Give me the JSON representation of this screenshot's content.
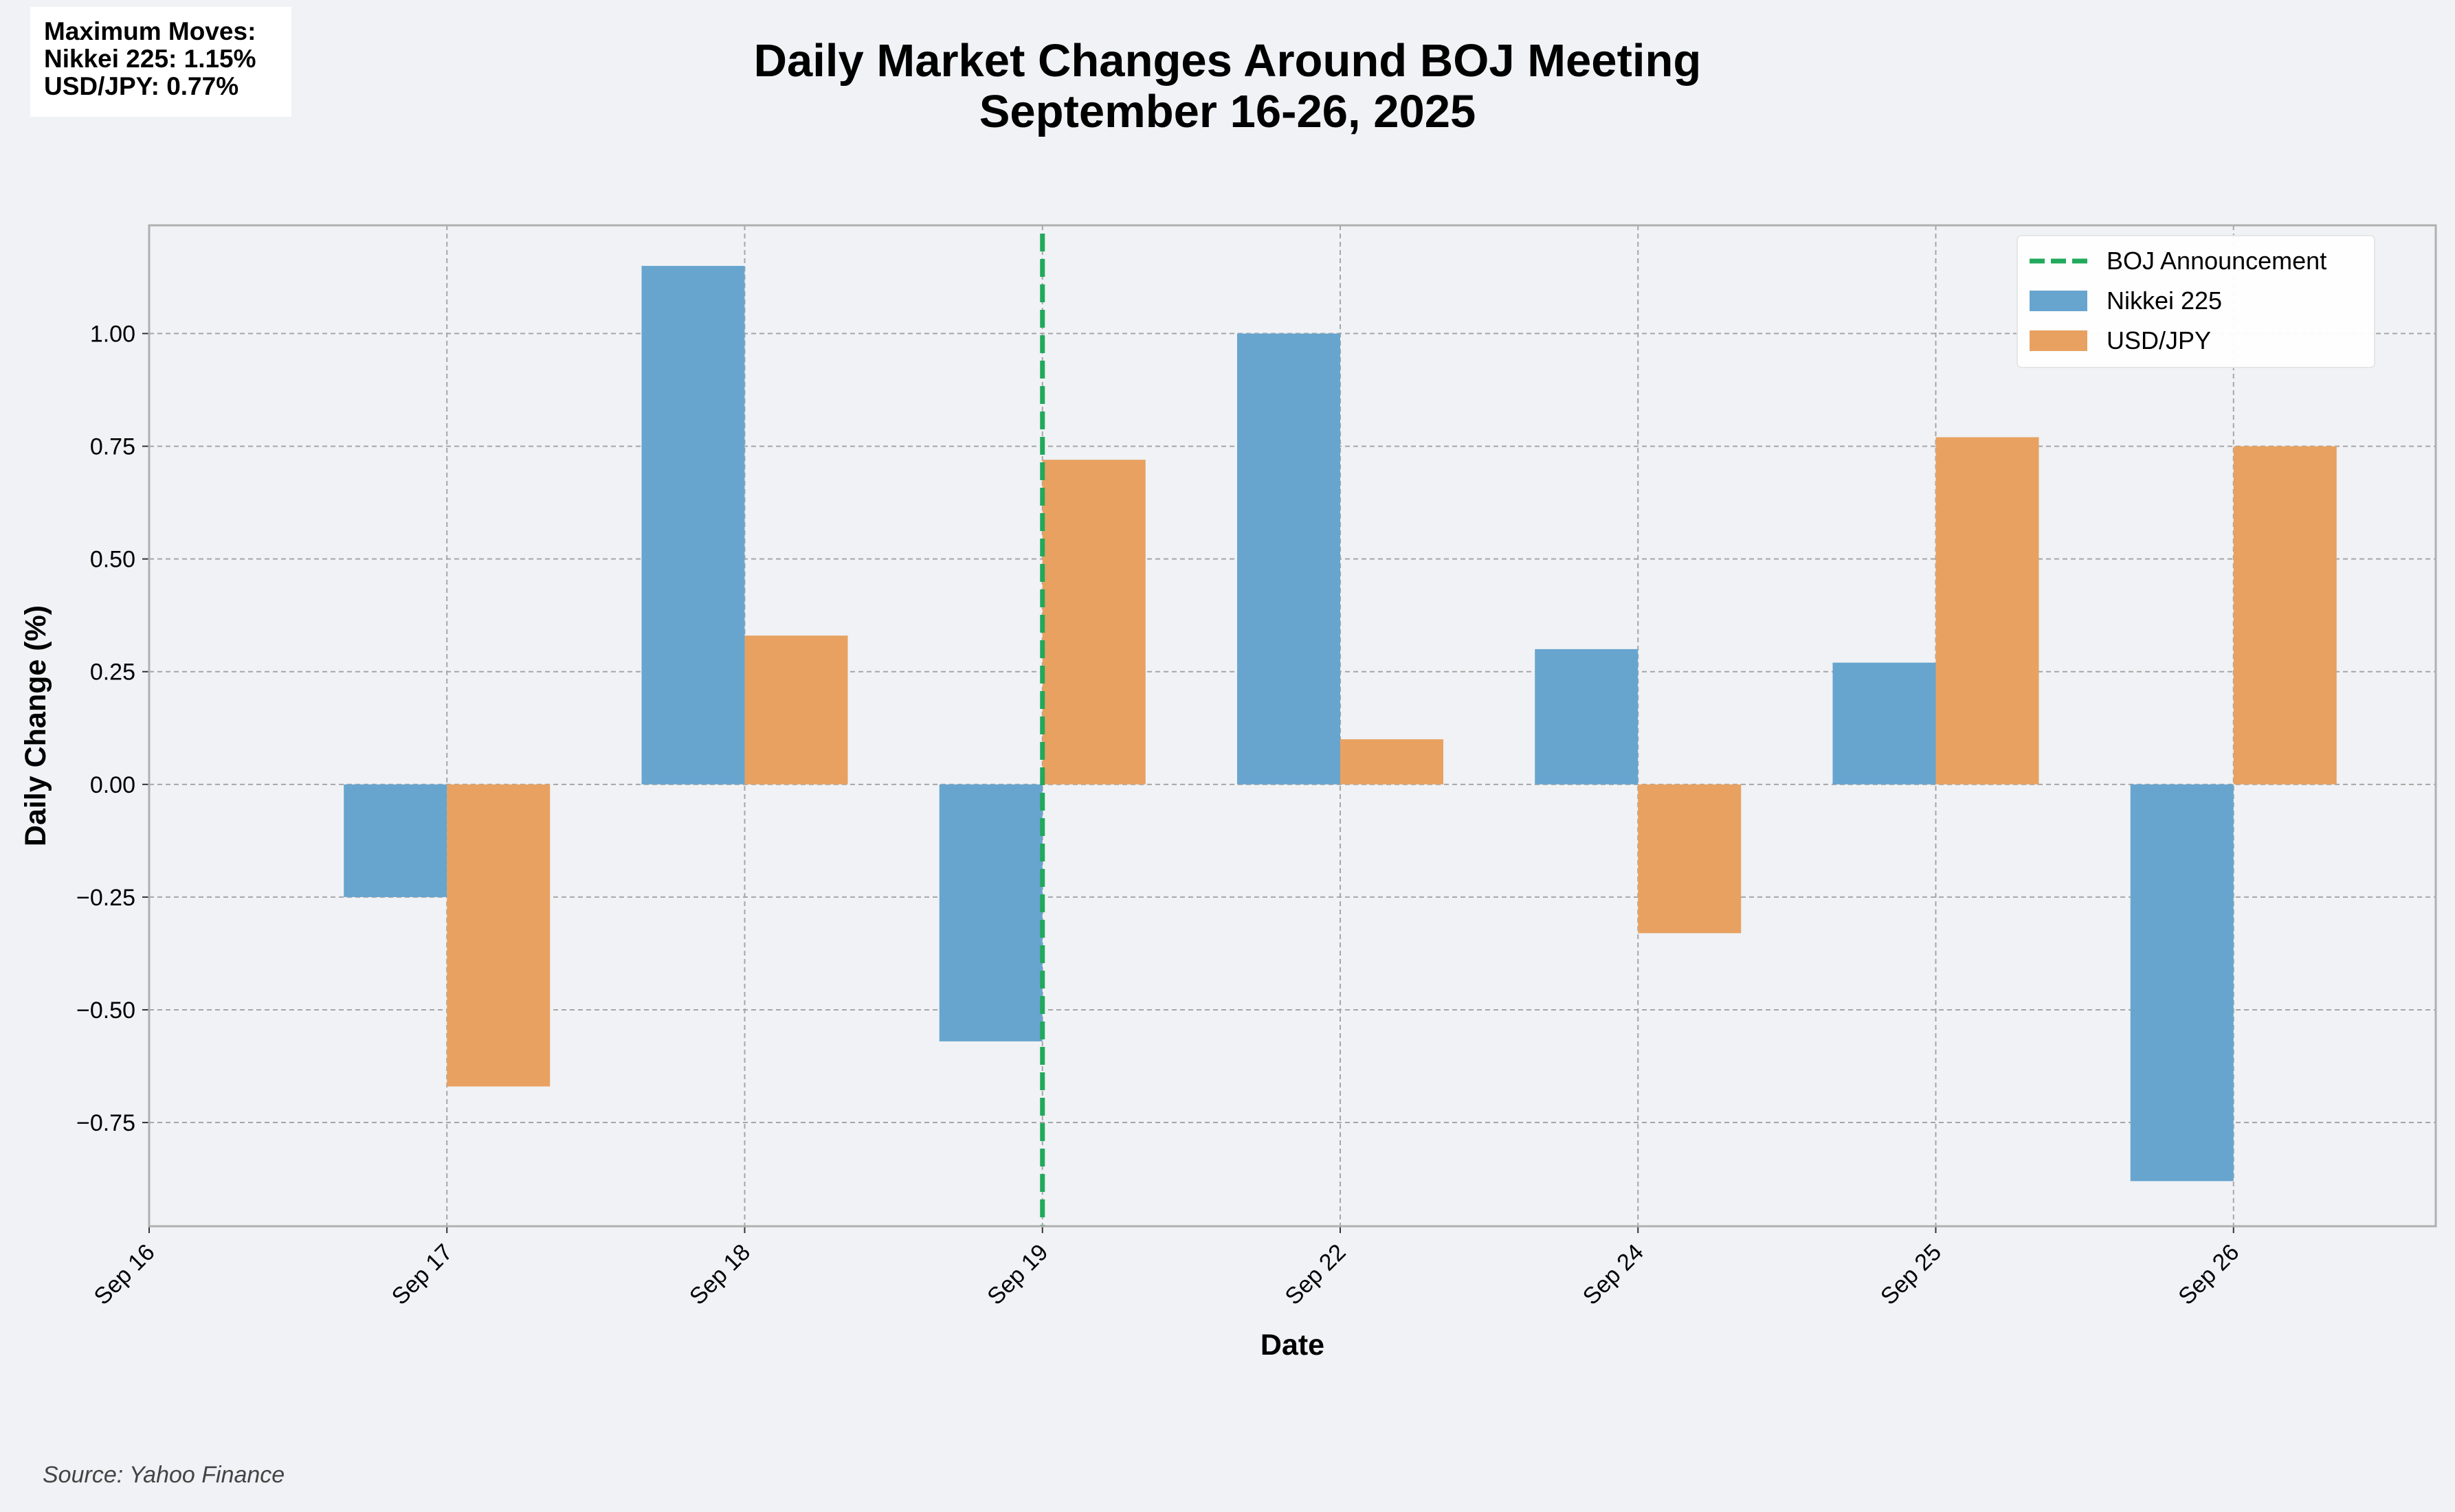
{
  "title_line1": "Daily Market Changes Around BOJ Meeting",
  "title_line2": "September 16-26, 2025",
  "annotation": {
    "heading": "Maximum Moves:",
    "nikkei": "Nikkei 225: 1.15%",
    "usdjpy": "USD/JPY: 0.77%"
  },
  "source": "Source: Yahoo Finance",
  "colors": {
    "nikkei": "#67a5cf",
    "usdjpy": "#e8a160",
    "boj_line": "#21a95c",
    "grid": "#a6a6a6",
    "background": "#f0f2f5"
  },
  "chart_data": {
    "type": "bar",
    "xlabel": "Date",
    "ylabel": "Daily Change (%)",
    "x_ticks": [
      "Sep 16",
      "Sep 17",
      "Sep 18",
      "Sep 19",
      "Sep 22",
      "Sep 24",
      "Sep 25",
      "Sep 26"
    ],
    "categories": [
      "Sep 17",
      "Sep 18",
      "Sep 19",
      "Sep 22",
      "Sep 24",
      "Sep 25",
      "Sep 26"
    ],
    "series": [
      {
        "name": "Nikkei 225",
        "values": [
          -0.25,
          1.15,
          -0.57,
          1.0,
          0.3,
          0.27,
          -0.88
        ]
      },
      {
        "name": "USD/JPY",
        "values": [
          -0.67,
          0.33,
          0.72,
          0.1,
          -0.33,
          0.77,
          0.75
        ]
      }
    ],
    "y_ticks": [
      "1.00",
      "0.75",
      "0.50",
      "0.25",
      "0.00",
      "−0.25",
      "−0.50",
      "−0.75"
    ],
    "y_tick_values": [
      1.0,
      0.75,
      0.5,
      0.25,
      0.0,
      -0.25,
      -0.5,
      -0.75
    ],
    "ylim": [
      -0.98,
      1.24
    ],
    "vline": {
      "label": "BOJ Announcement",
      "at": "Sep 19"
    },
    "legend": [
      "BOJ Announcement",
      "Nikkei 225",
      "USD/JPY"
    ],
    "legend_position": "top-right",
    "grid": true
  }
}
